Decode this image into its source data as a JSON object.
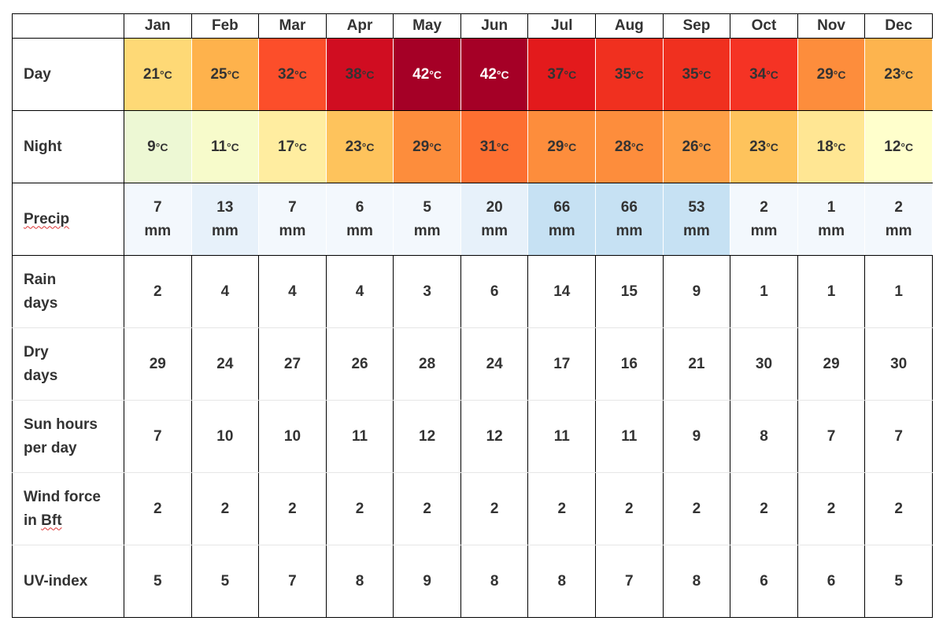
{
  "months": [
    "Jan",
    "Feb",
    "Mar",
    "Apr",
    "May",
    "Jun",
    "Jul",
    "Aug",
    "Sep",
    "Oct",
    "Nov",
    "Dec"
  ],
  "rows": {
    "day": {
      "label": "Day",
      "values": [
        "21",
        "25",
        "32",
        "38",
        "42",
        "42",
        "37",
        "35",
        "35",
        "34",
        "29",
        "23"
      ],
      "unit": "°C",
      "colors": [
        "#fed976",
        "#feb24c",
        "#fc4e2a",
        "#d00d21",
        "#a50026",
        "#a50026",
        "#e31a1c",
        "#f0301f",
        "#f0301f",
        "#f53324",
        "#fd8d3c",
        "#fdb44e"
      ],
      "text_colors": [
        "#333333",
        "#333333",
        "#333333",
        "#333333",
        "#ffffff",
        "#ffffff",
        "#333333",
        "#333333",
        "#333333",
        "#333333",
        "#333333",
        "#333333"
      ]
    },
    "night": {
      "label": "Night",
      "values": [
        "9",
        "11",
        "17",
        "23",
        "29",
        "31",
        "29",
        "28",
        "26",
        "23",
        "18",
        "12"
      ],
      "unit": "°C",
      "colors": [
        "#edf8d4",
        "#f7fbcb",
        "#ffeda0",
        "#fec35c",
        "#fd8d3c",
        "#fd6f31",
        "#fd8d3c",
        "#fd8d3c",
        "#fe9f46",
        "#fec35c",
        "#ffe693",
        "#ffffcc"
      ]
    },
    "precip": {
      "label": "Precip",
      "values": [
        "7",
        "13",
        "7",
        "6",
        "5",
        "20",
        "66",
        "66",
        "53",
        "2",
        "1",
        "2"
      ],
      "unit": "mm",
      "colors": [
        "#f3f8fd",
        "#e7f1fa",
        "#f3f8fd",
        "#f3f8fd",
        "#f3f8fd",
        "#e7f1fa",
        "#c6e1f3",
        "#c6e1f3",
        "#c6e1f3",
        "#f3f8fd",
        "#f3f8fd",
        "#f3f8fd"
      ]
    },
    "rain_days": {
      "label_line1": "Rain",
      "label_line2": "days",
      "values": [
        "2",
        "4",
        "4",
        "4",
        "3",
        "6",
        "14",
        "15",
        "9",
        "1",
        "1",
        "1"
      ]
    },
    "dry_days": {
      "label_line1": "Dry",
      "label_line2": "days",
      "values": [
        "29",
        "24",
        "27",
        "26",
        "28",
        "24",
        "17",
        "16",
        "21",
        "30",
        "29",
        "30"
      ]
    },
    "sun_hours": {
      "label_line1": "Sun hours",
      "label_line2": "per day",
      "values": [
        "7",
        "10",
        "10",
        "11",
        "12",
        "12",
        "11",
        "11",
        "9",
        "8",
        "7",
        "7"
      ]
    },
    "wind": {
      "label_line1": "Wind force",
      "label_line2_prefix": "in ",
      "label_line2_word": "Bft",
      "values": [
        "2",
        "2",
        "2",
        "2",
        "2",
        "2",
        "2",
        "2",
        "2",
        "2",
        "2",
        "2"
      ]
    },
    "uv": {
      "label": "UV-index",
      "values": [
        "5",
        "5",
        "7",
        "8",
        "9",
        "8",
        "8",
        "7",
        "8",
        "6",
        "6",
        "5"
      ]
    }
  }
}
